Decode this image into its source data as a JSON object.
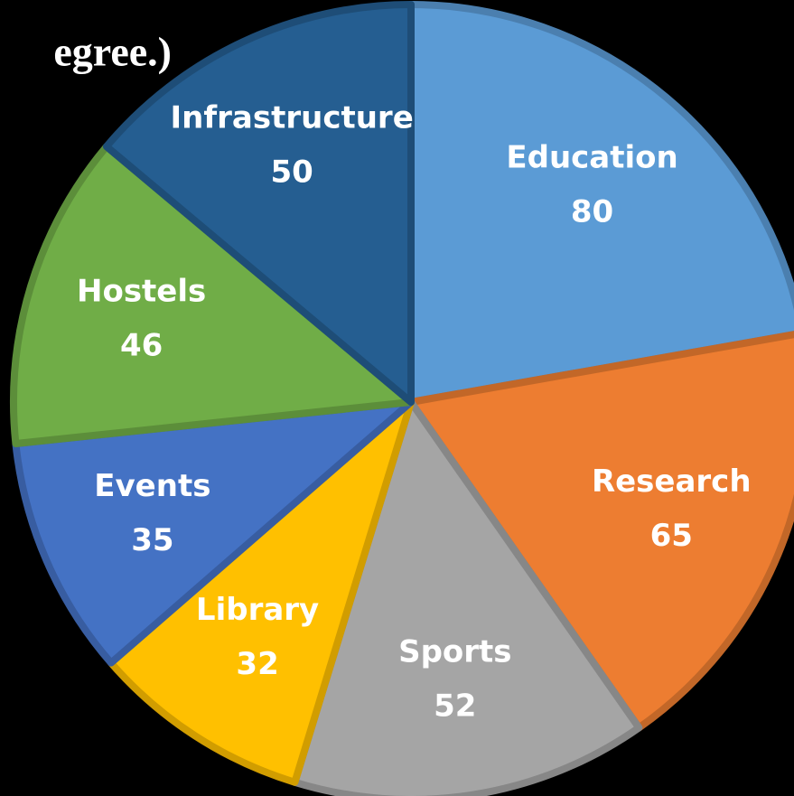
{
  "chart_data": {
    "type": "pie",
    "title": "egree.)",
    "categories": [
      "Education",
      "Research",
      "Sports",
      "Library",
      "Events",
      "Hostels",
      "Infrastructure"
    ],
    "values": [
      80,
      65,
      52,
      32,
      35,
      46,
      50
    ],
    "colors": [
      "#5b9bd5",
      "#ed7d31",
      "#a5a5a5",
      "#ffc000",
      "#4472c4",
      "#70ad47",
      "#255e91"
    ]
  }
}
